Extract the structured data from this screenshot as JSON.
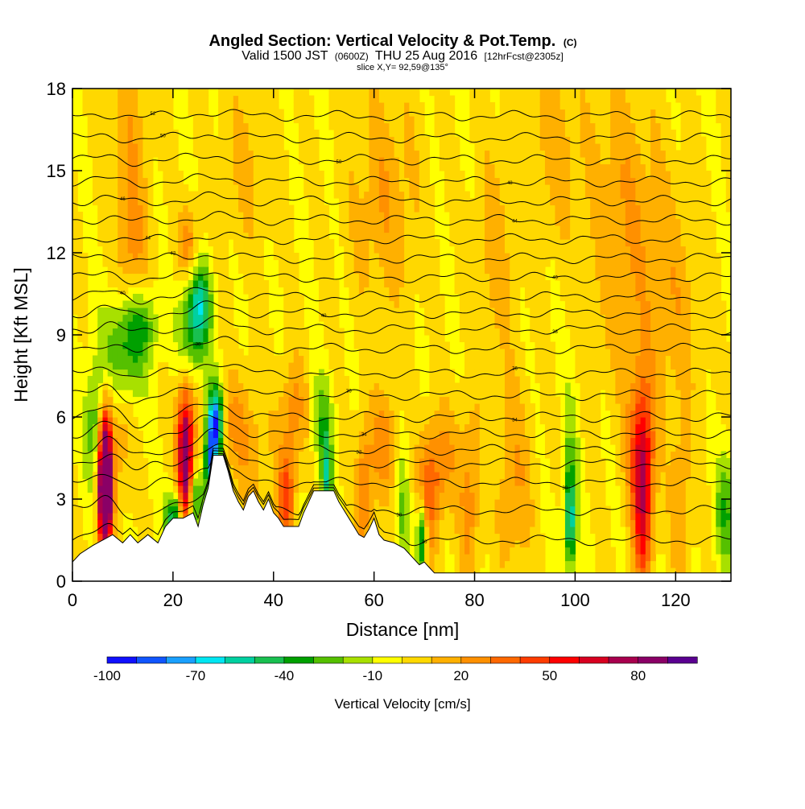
{
  "header": {
    "title_main": "Angled Section: Vertical Velocity & Pot.Temp.",
    "title_units": "(C)",
    "subtitle_valid": "Valid 1500 JST",
    "subtitle_z": "(0600Z)",
    "subtitle_date": "THU 25 Aug 2016",
    "subtitle_fcst": "[12hrFcst@2305z]",
    "slice": "slice X,Y= 92,59@135°"
  },
  "chart_data": {
    "type": "heatmap",
    "title": "Angled Section: Vertical Velocity & Pot.Temp. (C)",
    "xlabel": "Distance [nm]",
    "ylabel": "Height [Kft MSL]",
    "xlim": [
      0,
      131
    ],
    "ylim": [
      0,
      18
    ],
    "x_ticks": [
      0,
      20,
      40,
      60,
      80,
      100,
      120
    ],
    "y_ticks": [
      0,
      3,
      6,
      9,
      12,
      15,
      18
    ],
    "colorbar": {
      "label": "Vertical Velocity [cm/s]",
      "tick_labels": [
        "-100",
        "-70",
        "-40",
        "-10",
        "20",
        "50",
        "80"
      ],
      "colors": [
        "#1010ff",
        "#1055ff",
        "#1aa0ff",
        "#00e6f2",
        "#00d0a0",
        "#19c050",
        "#00a000",
        "#55c000",
        "#a8e000",
        "#ffff00",
        "#ffd800",
        "#ffb000",
        "#ff9000",
        "#ff6800",
        "#ff3c00",
        "#ff0000",
        "#d80020",
        "#a8004e",
        "#8a0066",
        "#5a0090"
      ]
    },
    "background_color": "#ffff00",
    "terrain": [
      [
        0,
        0.7
      ],
      [
        1.5,
        1.0
      ],
      [
        4,
        1.3
      ],
      [
        8,
        1.7
      ],
      [
        10,
        1.4
      ],
      [
        11.5,
        1.7
      ],
      [
        13,
        1.4
      ],
      [
        15,
        1.7
      ],
      [
        17,
        1.4
      ],
      [
        18.5,
        2.0
      ],
      [
        20,
        2.3
      ],
      [
        22,
        2.3
      ],
      [
        24,
        2.5
      ],
      [
        25,
        2.0
      ],
      [
        26,
        2.8
      ],
      [
        27,
        3.4
      ],
      [
        28,
        4.6
      ],
      [
        30,
        4.6
      ],
      [
        31,
        4.0
      ],
      [
        32,
        3.3
      ],
      [
        33,
        2.9
      ],
      [
        34,
        2.6
      ],
      [
        35,
        3.1
      ],
      [
        36,
        3.3
      ],
      [
        37,
        2.9
      ],
      [
        38,
        2.6
      ],
      [
        39,
        3.0
      ],
      [
        40,
        2.5
      ],
      [
        41,
        2.3
      ],
      [
        42,
        2.0
      ],
      [
        45,
        2.0
      ],
      [
        46,
        2.5
      ],
      [
        47,
        2.9
      ],
      [
        48,
        3.3
      ],
      [
        52,
        3.3
      ],
      [
        53,
        2.9
      ],
      [
        54,
        2.6
      ],
      [
        55,
        2.3
      ],
      [
        56,
        2.0
      ],
      [
        57,
        1.7
      ],
      [
        58,
        1.6
      ],
      [
        59,
        1.9
      ],
      [
        60,
        2.3
      ],
      [
        61,
        1.7
      ],
      [
        62,
        1.5
      ],
      [
        64,
        1.4
      ],
      [
        66,
        1.2
      ],
      [
        67,
        1.0
      ],
      [
        68,
        0.8
      ],
      [
        69,
        0.6
      ],
      [
        70,
        0.7
      ],
      [
        71,
        0.5
      ],
      [
        72,
        0.3
      ],
      [
        131,
        0.3
      ]
    ],
    "theta_contours": [
      {
        "base": 1.5,
        "label": "30",
        "label_x": 70
      },
      {
        "base": 2.6,
        "label": "30",
        "label_x": 65
      },
      {
        "base": 3.6,
        "label": "30",
        "label_x": 98
      },
      {
        "base": 4.3,
        "label": "32",
        "label_x": 23
      },
      {
        "base": 4.8,
        "label": "32",
        "label_x": 57
      },
      {
        "base": 5.4,
        "label": "34",
        "label_x": 58
      },
      {
        "base": 6.0,
        "label": "34",
        "label_x": 88
      },
      {
        "base": 6.8,
        "label": "36",
        "label_x": 55
      },
      {
        "base": 7.6,
        "label": "36",
        "label_x": 88
      },
      {
        "base": 8.5,
        "label": "38",
        "label_x": 25
      },
      {
        "base": 9.2,
        "label": "38",
        "label_x": 96
      },
      {
        "base": 9.8,
        "label": "40",
        "label_x": 50
      },
      {
        "base": 10.4,
        "label": "40",
        "label_x": 10
      },
      {
        "base": 11.1,
        "label": "40",
        "label_x": 96
      },
      {
        "base": 11.8,
        "label": "42",
        "label_x": 20
      },
      {
        "base": 12.5,
        "label": "44",
        "label_x": 15
      },
      {
        "base": 13.2,
        "label": "44",
        "label_x": 88
      },
      {
        "base": 13.9,
        "label": "46",
        "label_x": 10
      },
      {
        "base": 14.6,
        "label": "48",
        "label_x": 87
      },
      {
        "base": 15.4,
        "label": "50",
        "label_x": 53
      },
      {
        "base": 16.2,
        "label": "50",
        "label_x": 18
      },
      {
        "base": 17.0,
        "label": "52",
        "label_x": 16
      }
    ]
  }
}
